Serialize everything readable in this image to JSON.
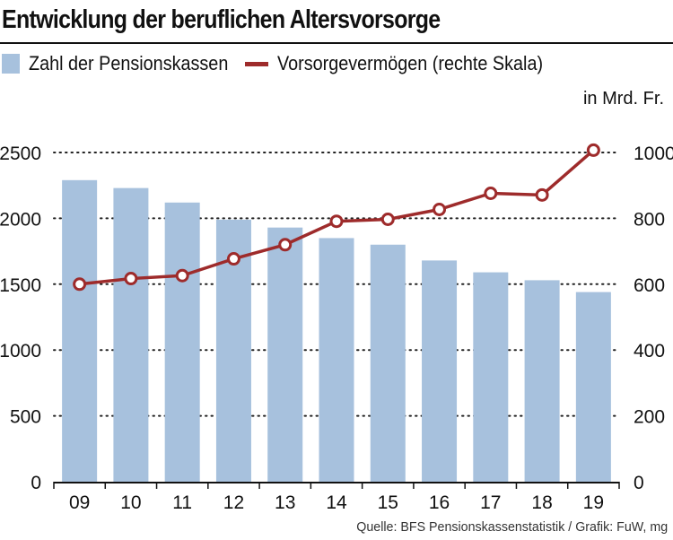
{
  "header": {
    "title": "Entwicklung der beruflichen Altersvorsorge"
  },
  "legend": {
    "bar_label": "Zahl der Pensionskassen",
    "line_label": "Vorsorgevermögen (rechte Skala)"
  },
  "unit_label": "in Mrd. Fr.",
  "source": "Quelle: BFS Pensionskassenstatistik / Grafik: FuW, mg",
  "colors": {
    "bar": "#a7c1dd",
    "line": "#9e2b2b",
    "marker_fill": "#ffffff",
    "axis": "#111111",
    "grid": "#222222"
  },
  "chart_data": {
    "type": "bar",
    "categories": [
      "09",
      "10",
      "11",
      "12",
      "13",
      "14",
      "15",
      "16",
      "17",
      "18",
      "19"
    ],
    "series": [
      {
        "name": "Zahl der Pensionskassen",
        "type": "bar",
        "axis": "left",
        "values": [
          2290,
          2230,
          2120,
          1990,
          1930,
          1850,
          1800,
          1680,
          1590,
          1530,
          1440
        ]
      },
      {
        "name": "Vorsorgevermögen (rechte Skala)",
        "type": "line",
        "axis": "right",
        "values": [
          600,
          617,
          626,
          677,
          720,
          791,
          797,
          827,
          876,
          871,
          1007
        ]
      }
    ],
    "y_left": {
      "min": 0,
      "max": 2500,
      "ticks": [
        "0",
        "500",
        "1000",
        "1500",
        "2000",
        "2500"
      ]
    },
    "y_right": {
      "min": 0,
      "max": 1000,
      "ticks": [
        "0",
        "200",
        "400",
        "600",
        "800",
        "1000"
      ]
    },
    "grid": "dotted horizontal",
    "legend_position": "top-left"
  }
}
